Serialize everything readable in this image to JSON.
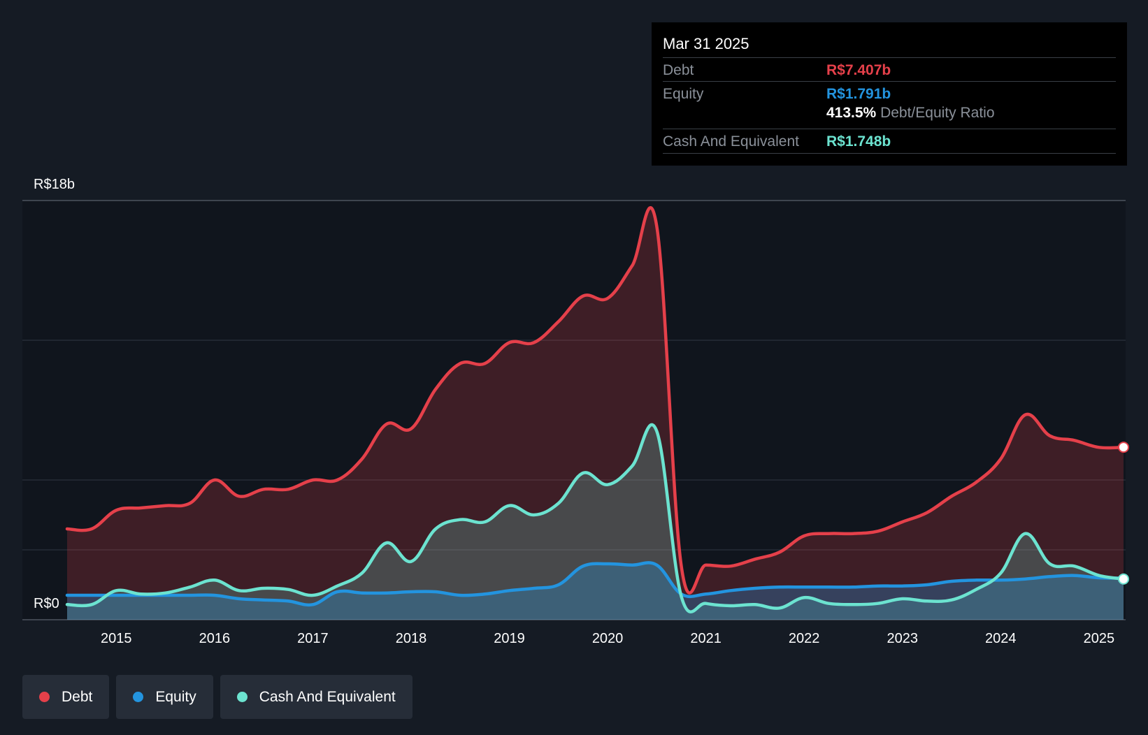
{
  "tooltip": {
    "date": "Mar 31 2025",
    "debt_label": "Debt",
    "debt_value": "R$7.407b",
    "equity_label": "Equity",
    "equity_value": "R$1.791b",
    "ratio_value": "413.5%",
    "ratio_label": "Debt/Equity Ratio",
    "cash_label": "Cash And Equivalent",
    "cash_value": "R$1.748b"
  },
  "legend": {
    "debt": "Debt",
    "equity": "Equity",
    "cash": "Cash And Equivalent"
  },
  "colors": {
    "debt": "#e5404a",
    "equity": "#2394df",
    "cash": "#6ce3d0",
    "background": "#151b24",
    "legend_bg": "#262d38"
  },
  "chart_data": {
    "type": "area",
    "ylim": [
      0,
      18
    ],
    "y_unit": "R$ billions",
    "y_tick_labels": {
      "top": "R$18b",
      "bottom": "R$0"
    },
    "x_ticks": [
      "2015",
      "2016",
      "2017",
      "2018",
      "2019",
      "2020",
      "2021",
      "2022",
      "2023",
      "2024",
      "2025"
    ],
    "xlim": [
      2014.5,
      2025.25
    ],
    "grid": true,
    "legend_position": "bottom-left",
    "series": [
      {
        "name": "Debt",
        "key": "debt",
        "points": [
          [
            2014.5,
            3.9
          ],
          [
            2014.75,
            3.9
          ],
          [
            2015.0,
            4.7
          ],
          [
            2015.25,
            4.8
          ],
          [
            2015.5,
            4.9
          ],
          [
            2015.75,
            5.0
          ],
          [
            2016.0,
            6.0
          ],
          [
            2016.25,
            5.3
          ],
          [
            2016.5,
            5.6
          ],
          [
            2016.75,
            5.6
          ],
          [
            2017.0,
            6.0
          ],
          [
            2017.25,
            6.0
          ],
          [
            2017.5,
            6.9
          ],
          [
            2017.75,
            8.4
          ],
          [
            2018.0,
            8.2
          ],
          [
            2018.25,
            9.9
          ],
          [
            2018.5,
            11.0
          ],
          [
            2018.75,
            11.0
          ],
          [
            2019.0,
            11.9
          ],
          [
            2019.25,
            11.9
          ],
          [
            2019.5,
            12.8
          ],
          [
            2019.75,
            13.9
          ],
          [
            2020.0,
            13.8
          ],
          [
            2020.25,
            15.2
          ],
          [
            2020.5,
            16.9
          ],
          [
            2020.75,
            2.3
          ],
          [
            2021.0,
            2.35
          ],
          [
            2021.25,
            2.3
          ],
          [
            2021.5,
            2.6
          ],
          [
            2021.75,
            2.9
          ],
          [
            2022.0,
            3.6
          ],
          [
            2022.25,
            3.7
          ],
          [
            2022.5,
            3.7
          ],
          [
            2022.75,
            3.8
          ],
          [
            2023.0,
            4.2
          ],
          [
            2023.25,
            4.6
          ],
          [
            2023.5,
            5.3
          ],
          [
            2023.75,
            5.9
          ],
          [
            2024.0,
            6.9
          ],
          [
            2024.25,
            8.8
          ],
          [
            2024.5,
            7.9
          ],
          [
            2024.75,
            7.7
          ],
          [
            2025.0,
            7.4
          ],
          [
            2025.25,
            7.407
          ]
        ]
      },
      {
        "name": "Equity",
        "key": "equity",
        "points": [
          [
            2014.5,
            1.05
          ],
          [
            2014.75,
            1.05
          ],
          [
            2015.0,
            1.05
          ],
          [
            2015.25,
            1.05
          ],
          [
            2015.5,
            1.05
          ],
          [
            2015.75,
            1.05
          ],
          [
            2016.0,
            1.05
          ],
          [
            2016.25,
            0.9
          ],
          [
            2016.5,
            0.85
          ],
          [
            2016.75,
            0.8
          ],
          [
            2017.0,
            0.65
          ],
          [
            2017.25,
            1.2
          ],
          [
            2017.5,
            1.15
          ],
          [
            2017.75,
            1.15
          ],
          [
            2018.0,
            1.2
          ],
          [
            2018.25,
            1.2
          ],
          [
            2018.5,
            1.05
          ],
          [
            2018.75,
            1.1
          ],
          [
            2019.0,
            1.25
          ],
          [
            2019.25,
            1.35
          ],
          [
            2019.5,
            1.5
          ],
          [
            2019.75,
            2.3
          ],
          [
            2020.0,
            2.4
          ],
          [
            2020.25,
            2.35
          ],
          [
            2020.5,
            2.35
          ],
          [
            2020.75,
            1.1
          ],
          [
            2021.0,
            1.1
          ],
          [
            2021.25,
            1.25
          ],
          [
            2021.5,
            1.35
          ],
          [
            2021.75,
            1.4
          ],
          [
            2022.0,
            1.4
          ],
          [
            2022.25,
            1.4
          ],
          [
            2022.5,
            1.4
          ],
          [
            2022.75,
            1.45
          ],
          [
            2023.0,
            1.45
          ],
          [
            2023.25,
            1.5
          ],
          [
            2023.5,
            1.65
          ],
          [
            2023.75,
            1.7
          ],
          [
            2024.0,
            1.7
          ],
          [
            2024.25,
            1.75
          ],
          [
            2024.5,
            1.85
          ],
          [
            2024.75,
            1.9
          ],
          [
            2025.0,
            1.8
          ],
          [
            2025.25,
            1.791
          ]
        ]
      },
      {
        "name": "Cash And Equivalent",
        "key": "cash",
        "points": [
          [
            2014.5,
            0.65
          ],
          [
            2014.75,
            0.65
          ],
          [
            2015.0,
            1.25
          ],
          [
            2015.25,
            1.1
          ],
          [
            2015.5,
            1.15
          ],
          [
            2015.75,
            1.4
          ],
          [
            2016.0,
            1.7
          ],
          [
            2016.25,
            1.25
          ],
          [
            2016.5,
            1.35
          ],
          [
            2016.75,
            1.3
          ],
          [
            2017.0,
            1.05
          ],
          [
            2017.25,
            1.45
          ],
          [
            2017.5,
            2.0
          ],
          [
            2017.75,
            3.3
          ],
          [
            2018.0,
            2.5
          ],
          [
            2018.25,
            3.9
          ],
          [
            2018.5,
            4.3
          ],
          [
            2018.75,
            4.2
          ],
          [
            2019.0,
            4.9
          ],
          [
            2019.25,
            4.5
          ],
          [
            2019.5,
            5.0
          ],
          [
            2019.75,
            6.3
          ],
          [
            2020.0,
            5.8
          ],
          [
            2020.25,
            6.6
          ],
          [
            2020.5,
            8.1
          ],
          [
            2020.75,
            1.0
          ],
          [
            2021.0,
            0.7
          ],
          [
            2021.25,
            0.6
          ],
          [
            2021.5,
            0.65
          ],
          [
            2021.75,
            0.5
          ],
          [
            2022.0,
            0.95
          ],
          [
            2022.25,
            0.7
          ],
          [
            2022.5,
            0.65
          ],
          [
            2022.75,
            0.7
          ],
          [
            2023.0,
            0.9
          ],
          [
            2023.25,
            0.8
          ],
          [
            2023.5,
            0.85
          ],
          [
            2023.75,
            1.3
          ],
          [
            2024.0,
            2.0
          ],
          [
            2024.25,
            3.7
          ],
          [
            2024.5,
            2.4
          ],
          [
            2024.75,
            2.3
          ],
          [
            2025.0,
            1.9
          ],
          [
            2025.25,
            1.748
          ]
        ]
      }
    ]
  }
}
